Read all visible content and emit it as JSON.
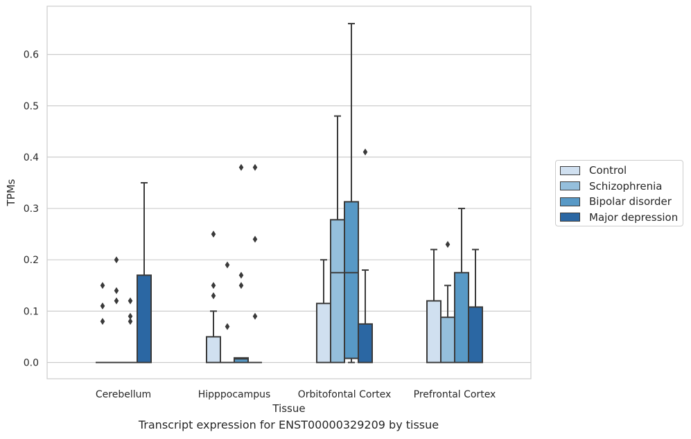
{
  "chart_data": {
    "type": "box",
    "title": "Transcript expression for ENST00000329209 by tissue",
    "xlabel": "Tissue",
    "ylabel": "TPMs",
    "ylim": [
      -0.033,
      0.69
    ],
    "yticks": [
      "0.0",
      "0.1",
      "0.2",
      "0.3",
      "0.4",
      "0.5",
      "0.6"
    ],
    "grid": true,
    "legend_position": "right",
    "categories": [
      "Cerebellum",
      "Hipppocampus",
      "Orbitofontal Cortex",
      "Prefrontal Cortex"
    ],
    "series": [
      {
        "name": "Control",
        "color": "#d0e0f0",
        "boxes": [
          {
            "q1": 0,
            "median": 0,
            "q3": 0,
            "whislo": 0,
            "whishi": 0,
            "fliers": [
              0.08,
              0.11,
              0.15
            ]
          },
          {
            "q1": 0,
            "median": 0,
            "q3": 0.05,
            "whislo": 0,
            "whishi": 0.1,
            "fliers": [
              0.13,
              0.15,
              0.25
            ]
          },
          {
            "q1": 0,
            "median": 0,
            "q3": 0.115,
            "whislo": 0,
            "whishi": 0.2,
            "fliers": []
          },
          {
            "q1": 0,
            "median": 0,
            "q3": 0.12,
            "whislo": 0,
            "whishi": 0.22,
            "fliers": []
          }
        ]
      },
      {
        "name": "Schizophrenia",
        "color": "#95bfdc",
        "boxes": [
          {
            "q1": 0,
            "median": 0,
            "q3": 0,
            "whislo": 0,
            "whishi": 0,
            "fliers": [
              0.12,
              0.14,
              0.2
            ]
          },
          {
            "q1": 0,
            "median": 0,
            "q3": 0,
            "whislo": 0,
            "whishi": 0,
            "fliers": [
              0.07,
              0.19
            ]
          },
          {
            "q1": 0,
            "median": 0.175,
            "q3": 0.278,
            "whislo": 0,
            "whishi": 0.48,
            "fliers": []
          },
          {
            "q1": 0,
            "median": 0,
            "q3": 0.088,
            "whislo": 0,
            "whishi": 0.15,
            "fliers": [
              0.23
            ]
          }
        ]
      },
      {
        "name": "Bipolar disorder",
        "color": "#5899c6",
        "boxes": [
          {
            "q1": 0,
            "median": 0,
            "q3": 0,
            "whislo": 0,
            "whishi": 0,
            "fliers": [
              0.08,
              0.09,
              0.12
            ]
          },
          {
            "q1": 0,
            "median": 0.007,
            "q3": 0.009,
            "whislo": 0,
            "whishi": 0.009,
            "fliers": [
              0.15,
              0.17,
              0.38
            ]
          },
          {
            "q1": 0.008,
            "median": 0.175,
            "q3": 0.313,
            "whislo": 0,
            "whishi": 0.66,
            "fliers": []
          },
          {
            "q1": 0,
            "median": 0,
            "q3": 0.175,
            "whislo": 0,
            "whishi": 0.3,
            "fliers": []
          }
        ]
      },
      {
        "name": "Major depression",
        "color": "#2b67a3",
        "boxes": [
          {
            "q1": 0,
            "median": 0,
            "q3": 0.17,
            "whislo": 0,
            "whishi": 0.35,
            "fliers": []
          },
          {
            "q1": 0,
            "median": 0,
            "q3": 0,
            "whislo": 0,
            "whishi": 0,
            "fliers": [
              0.09,
              0.24,
              0.38
            ]
          },
          {
            "q1": 0,
            "median": 0,
            "q3": 0.075,
            "whislo": 0,
            "whishi": 0.18,
            "fliers": [
              0.41
            ]
          },
          {
            "q1": 0,
            "median": 0,
            "q3": 0.108,
            "whislo": 0,
            "whishi": 0.22,
            "fliers": []
          }
        ]
      }
    ]
  }
}
